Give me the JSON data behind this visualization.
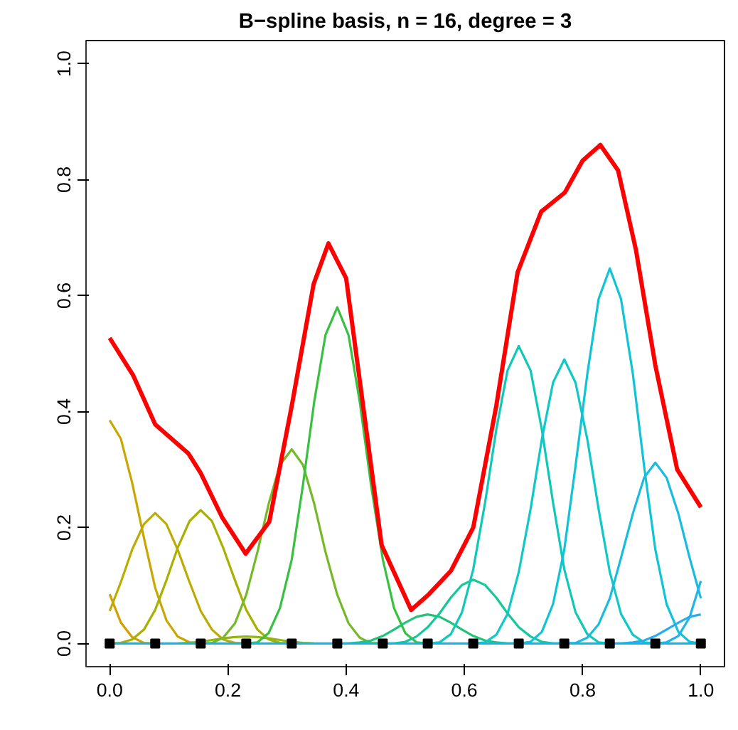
{
  "chart_data": {
    "type": "line",
    "title": "B−spline basis, n = 16, degree = 3",
    "xlim": [
      -0.04,
      1.04
    ],
    "ylim": [
      -0.04,
      1.04
    ],
    "xticks": [
      {
        "value": 0,
        "label": "0.0"
      },
      {
        "value": 0.2,
        "label": "0.2"
      },
      {
        "value": 0.4,
        "label": "0.4"
      },
      {
        "value": 0.6,
        "label": "0.6"
      },
      {
        "value": 0.8,
        "label": "0.8"
      },
      {
        "value": 1,
        "label": "1.0"
      }
    ],
    "yticks": [
      {
        "value": 0,
        "label": "0.0"
      },
      {
        "value": 0.2,
        "label": "0.2"
      },
      {
        "value": 0.4,
        "label": "0.4"
      },
      {
        "value": 0.6,
        "label": "0.6"
      },
      {
        "value": 0.8,
        "label": "0.8"
      },
      {
        "value": 1,
        "label": "1.0"
      }
    ],
    "grid": false,
    "marker": "none",
    "line_style": "solid",
    "series": [
      {
        "color": "#d4a000",
        "x": [
          0,
          0.019,
          0.038,
          0.058,
          0.077
        ],
        "values": [
          0.085,
          0.036,
          0.011,
          0.001,
          0
        ]
      },
      {
        "color": "#c9a600",
        "x": [
          0,
          0.019,
          0.038,
          0.058,
          0.077,
          0.096,
          0.115,
          0.135,
          0.154
        ],
        "values": [
          0.385,
          0.353,
          0.277,
          0.182,
          0.096,
          0.04,
          0.012,
          0.002,
          0
        ]
      },
      {
        "color": "#bcab00",
        "x": [
          0,
          0.019,
          0.038,
          0.058,
          0.077,
          0.096,
          0.115,
          0.135,
          0.154,
          0.173,
          0.192,
          0.212,
          0.231
        ],
        "values": [
          0.056,
          0.106,
          0.162,
          0.206,
          0.225,
          0.206,
          0.162,
          0.106,
          0.056,
          0.024,
          0.007,
          0.001,
          0
        ]
      },
      {
        "color": "#a8b000",
        "x": [
          0,
          0.019,
          0.038,
          0.058,
          0.077,
          0.096,
          0.115,
          0.135,
          0.154,
          0.173,
          0.192,
          0.212,
          0.231,
          0.25,
          0.269,
          0.288,
          0.308
        ],
        "values": [
          0,
          0.001,
          0.007,
          0.024,
          0.058,
          0.109,
          0.165,
          0.211,
          0.23,
          0.211,
          0.165,
          0.109,
          0.058,
          0.024,
          0.007,
          0.001,
          0
        ]
      },
      {
        "color": "#94b410",
        "x": [
          0.115,
          0.135,
          0.154,
          0.173,
          0.192,
          0.212,
          0.231,
          0.25,
          0.269,
          0.288,
          0.308,
          0.327,
          0.346
        ],
        "values": [
          0,
          0.001,
          0.003,
          0.006,
          0.009,
          0.011,
          0.012,
          0.011,
          0.009,
          0.006,
          0.003,
          0.001,
          0
        ]
      },
      {
        "color": "#74ba28",
        "x": [
          0.154,
          0.173,
          0.192,
          0.212,
          0.231,
          0.25,
          0.269,
          0.288,
          0.308,
          0.327,
          0.346,
          0.365,
          0.385,
          0.404,
          0.423,
          0.442,
          0.462
        ],
        "values": [
          0,
          0.001,
          0.01,
          0.035,
          0.084,
          0.158,
          0.241,
          0.308,
          0.335,
          0.308,
          0.241,
          0.158,
          0.084,
          0.035,
          0.01,
          0.001,
          0
        ]
      },
      {
        "color": "#38c040",
        "x": [
          0.231,
          0.25,
          0.269,
          0.288,
          0.308,
          0.327,
          0.346,
          0.365,
          0.385,
          0.404,
          0.423,
          0.442,
          0.462,
          0.481,
          0.5,
          0.519,
          0.538
        ],
        "values": [
          0,
          0.002,
          0.018,
          0.061,
          0.145,
          0.274,
          0.417,
          0.532,
          0.58,
          0.532,
          0.417,
          0.274,
          0.145,
          0.061,
          0.018,
          0.002,
          0
        ]
      },
      {
        "color": "#20c478",
        "x": [
          0.385,
          0.404,
          0.423,
          0.442,
          0.462,
          0.481,
          0.5,
          0.519,
          0.538,
          0.558,
          0.577,
          0.596,
          0.615,
          0.635,
          0.654,
          0.673,
          0.692
        ],
        "values": [
          0,
          0,
          0.002,
          0.005,
          0.013,
          0.024,
          0.036,
          0.046,
          0.05,
          0.046,
          0.036,
          0.024,
          0.013,
          0.005,
          0.002,
          0,
          0
        ]
      },
      {
        "color": "#14c898",
        "x": [
          0.462,
          0.481,
          0.5,
          0.519,
          0.538,
          0.558,
          0.577,
          0.596,
          0.615,
          0.635,
          0.654,
          0.673,
          0.692,
          0.712,
          0.731,
          0.75,
          0.769
        ],
        "values": [
          0,
          0,
          0.003,
          0.012,
          0.028,
          0.052,
          0.079,
          0.101,
          0.11,
          0.101,
          0.079,
          0.052,
          0.028,
          0.012,
          0.003,
          0,
          0
        ]
      },
      {
        "color": "#10c8b8",
        "x": [
          0.538,
          0.558,
          0.577,
          0.596,
          0.615,
          0.635,
          0.654,
          0.673,
          0.692,
          0.712,
          0.731,
          0.75,
          0.769,
          0.788,
          0.808,
          0.827,
          0.846
        ],
        "values": [
          0,
          0.002,
          0.016,
          0.054,
          0.128,
          0.243,
          0.369,
          0.471,
          0.513,
          0.471,
          0.369,
          0.243,
          0.128,
          0.054,
          0.016,
          0.002,
          0
        ]
      },
      {
        "color": "#10c8c8",
        "x": [
          0.615,
          0.635,
          0.654,
          0.673,
          0.692,
          0.712,
          0.731,
          0.75,
          0.769,
          0.788,
          0.808,
          0.827,
          0.846,
          0.865,
          0.885,
          0.904,
          0.923
        ],
        "values": [
          0,
          0.002,
          0.015,
          0.051,
          0.123,
          0.232,
          0.352,
          0.45,
          0.49,
          0.45,
          0.352,
          0.232,
          0.123,
          0.051,
          0.015,
          0.002,
          0
        ]
      },
      {
        "color": "#10c4d8",
        "x": [
          0.692,
          0.712,
          0.731,
          0.75,
          0.769,
          0.788,
          0.808,
          0.827,
          0.846,
          0.865,
          0.885,
          0.904,
          0.923,
          0.942,
          0.962,
          0.981,
          1
        ],
        "values": [
          0,
          0.003,
          0.02,
          0.068,
          0.162,
          0.306,
          0.465,
          0.594,
          0.647,
          0.594,
          0.465,
          0.306,
          0.162,
          0.068,
          0.02,
          0.003,
          0
        ]
      },
      {
        "color": "#18bce0",
        "x": [
          0.769,
          0.788,
          0.808,
          0.827,
          0.846,
          0.865,
          0.885,
          0.904,
          0.923,
          0.942,
          0.962,
          0.981,
          1
        ],
        "values": [
          0,
          0.001,
          0.01,
          0.033,
          0.078,
          0.148,
          0.224,
          0.286,
          0.312,
          0.286,
          0.224,
          0.148,
          0.078
        ]
      },
      {
        "color": "#20b4e8",
        "x": [
          0.923,
          0.942,
          0.962,
          0.981,
          1
        ],
        "values": [
          0,
          0.002,
          0.013,
          0.045,
          0.108
        ]
      },
      {
        "color": "#28acf0",
        "x": [
          0.846,
          0.865,
          0.885,
          0.904,
          0.923,
          0.942,
          0.962,
          0.981,
          1
        ],
        "values": [
          0,
          0,
          0.002,
          0.005,
          0.013,
          0.024,
          0.036,
          0.046,
          0.05
        ]
      },
      {
        "color": "#1ab4e8",
        "x": [
          0,
          1
        ],
        "values": [
          0,
          0
        ]
      },
      {
        "type": "scatter",
        "color": "#000000",
        "marker": "square",
        "x": [
          0,
          0.077,
          0.154,
          0.231,
          0.308,
          0.385,
          0.462,
          0.538,
          0.615,
          0.692,
          0.769,
          0.846,
          0.923,
          1
        ],
        "values": [
          0,
          0,
          0,
          0,
          0,
          0,
          0,
          0,
          0,
          0,
          0,
          0,
          0,
          0
        ]
      },
      {
        "color": "#ff0000",
        "x": [
          0,
          0.04,
          0.077,
          0.133,
          0.154,
          0.19,
          0.23,
          0.27,
          0.308,
          0.345,
          0.37,
          0.4,
          0.43,
          0.46,
          0.51,
          0.54,
          0.577,
          0.615,
          0.654,
          0.69,
          0.73,
          0.77,
          0.8,
          0.83,
          0.86,
          0.89,
          0.923,
          0.96,
          1
        ],
        "values": [
          0.527,
          0.462,
          0.378,
          0.328,
          0.294,
          0.218,
          0.155,
          0.21,
          0.41,
          0.62,
          0.69,
          0.63,
          0.4,
          0.17,
          0.058,
          0.085,
          0.125,
          0.2,
          0.41,
          0.64,
          0.745,
          0.778,
          0.833,
          0.86,
          0.816,
          0.68,
          0.48,
          0.3,
          0.235
        ]
      }
    ]
  }
}
